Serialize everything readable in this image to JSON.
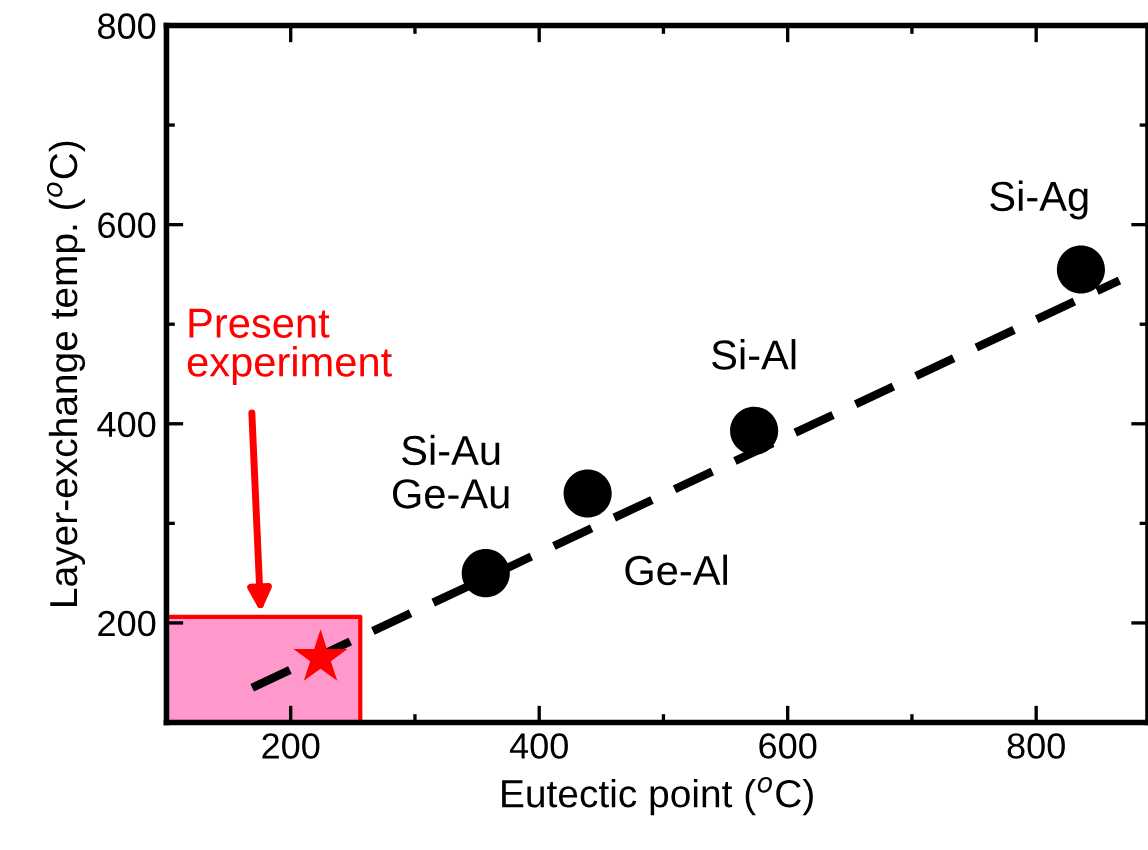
{
  "chart_data": {
    "type": "scatter",
    "xlabel": "Eutectic point ($^{o}$C)",
    "ylabel": "Layer-exchange temp. ($^{o}$C)",
    "xlim": [
      100,
      890
    ],
    "ylim": [
      100,
      800
    ],
    "xticks": [
      200,
      400,
      600,
      800
    ],
    "yticks": [
      200,
      400,
      600,
      800
    ],
    "grid": false,
    "legend": false,
    "series": [
      {
        "type": "area",
        "color": "#ff99cc",
        "x": [
          100,
          256
        ],
        "values": [
          206,
          206
        ]
      },
      {
        "type": "line",
        "color": "#000000",
        "line_style": "dashed",
        "marker": "none",
        "x": [
          169,
          867
        ],
        "values": [
          135,
          544
        ]
      },
      {
        "color": "#000000",
        "marker": "circle",
        "x": [
          357,
          439,
          573,
          836
        ],
        "values": [
          250,
          330,
          393,
          555
        ]
      },
      {
        "type": "scatter",
        "color": "#ff0000",
        "marker": "star",
        "x": [
          224
        ],
        "values": [
          165
        ]
      }
    ],
    "annotations": [
      "Si-Au\nGe-Au",
      {
        "text": "Ge-Al",
        "x": 439,
        "y": 330
      },
      {
        "text": "Si-Al",
        "x": 573,
        "y": 393
      },
      {
        "text": "Si-Ag",
        "x": 836,
        "y": 555
      },
      "Present\nexperiment"
    ]
  }
}
